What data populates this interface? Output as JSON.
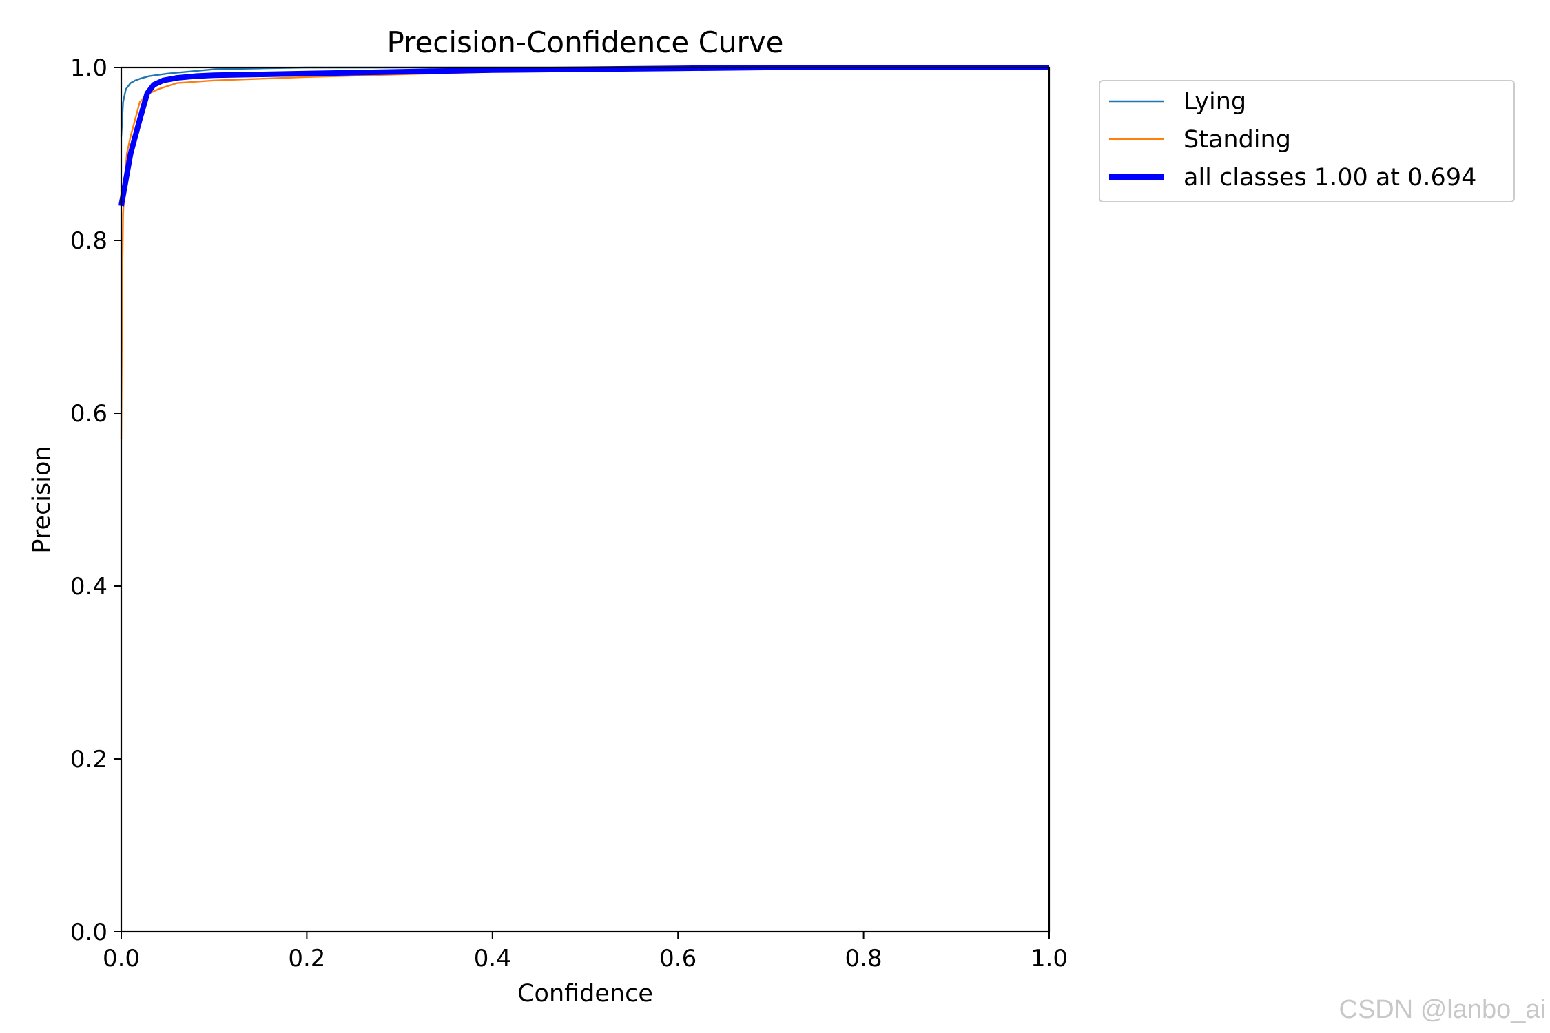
{
  "chart_data": {
    "type": "line",
    "title": "Precision-Confidence Curve",
    "xlabel": "Confidence",
    "ylabel": "Precision",
    "xlim": [
      0,
      1
    ],
    "ylim": [
      0,
      1
    ],
    "xticks": [
      "0.0",
      "0.2",
      "0.4",
      "0.6",
      "0.8",
      "1.0"
    ],
    "yticks": [
      "0.0",
      "0.2",
      "0.4",
      "0.6",
      "0.8",
      "1.0"
    ],
    "grid": false,
    "legend_position": "outside-top-right",
    "series": [
      {
        "name": "Lying",
        "color": "#1f77b4",
        "x": [
          0.0,
          0.002,
          0.005,
          0.01,
          0.015,
          0.02,
          0.03,
          0.05,
          0.08,
          0.1,
          0.15,
          0.2,
          0.3,
          0.4,
          0.6,
          0.8,
          1.0
        ],
        "y": [
          0.92,
          0.96,
          0.975,
          0.982,
          0.985,
          0.987,
          0.99,
          0.993,
          0.996,
          0.998,
          0.999,
          1.0,
          1.0,
          1.0,
          1.0,
          1.0,
          1.0
        ]
      },
      {
        "name": "Standing",
        "color": "#ff7f0e",
        "x": [
          0.0,
          0.001,
          0.002,
          0.004,
          0.006,
          0.01,
          0.015,
          0.02,
          0.03,
          0.04,
          0.06,
          0.1,
          0.2,
          0.3,
          0.4,
          0.5,
          0.6,
          0.7,
          0.8,
          1.0
        ],
        "y": [
          0.57,
          0.75,
          0.83,
          0.87,
          0.9,
          0.92,
          0.94,
          0.96,
          0.97,
          0.975,
          0.982,
          0.985,
          0.989,
          0.992,
          0.995,
          0.997,
          0.998,
          1.0,
          1.0,
          1.0
        ]
      },
      {
        "name": "all classes 1.00 at 0.694",
        "color": "#0000ff",
        "x": [
          0.0,
          0.005,
          0.01,
          0.02,
          0.028,
          0.035,
          0.045,
          0.06,
          0.08,
          0.1,
          0.15,
          0.2,
          0.3,
          0.4,
          0.5,
          0.6,
          0.694,
          0.8,
          1.0
        ],
        "y": [
          0.84,
          0.87,
          0.9,
          0.94,
          0.97,
          0.98,
          0.985,
          0.988,
          0.99,
          0.991,
          0.992,
          0.993,
          0.995,
          0.997,
          0.998,
          0.999,
          1.0,
          1.0,
          1.0
        ]
      }
    ]
  },
  "watermark": "CSDN @lanbo_ai"
}
